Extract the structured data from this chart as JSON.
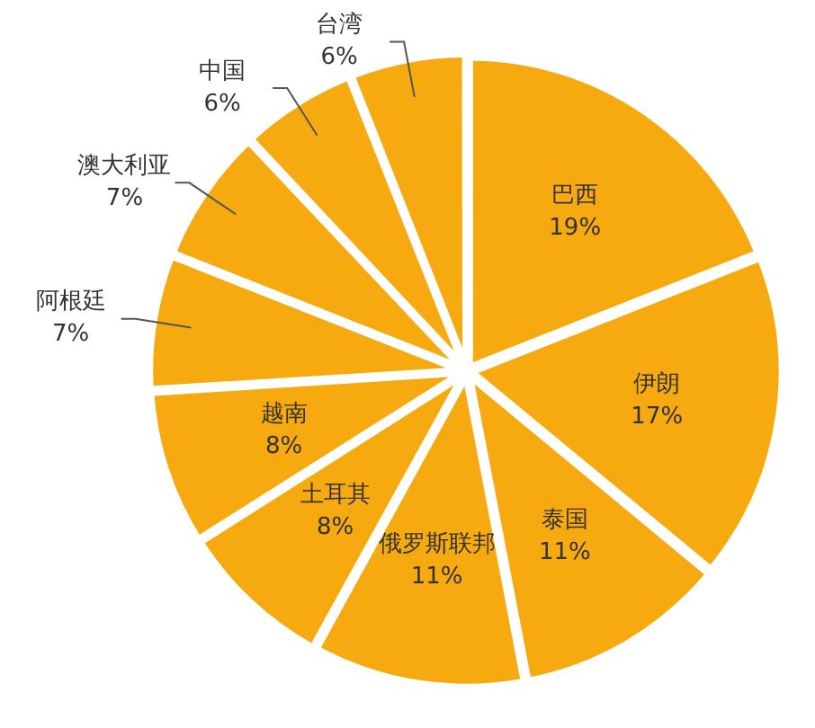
{
  "chart_data": {
    "type": "pie",
    "categories": [
      "巴西",
      "伊朗",
      "泰国",
      "俄罗斯联邦",
      "土耳其",
      "越南",
      "阿根廷",
      "澳大利亚",
      "中国",
      "台湾"
    ],
    "values": [
      19,
      17,
      11,
      11,
      8,
      8,
      7,
      7,
      6,
      6
    ],
    "value_labels": [
      "19%",
      "17%",
      "11%",
      "11%",
      "8%",
      "8%",
      "7%",
      "7%",
      "6%",
      "6%"
    ],
    "colors": [
      "#f7aa10",
      "#f7aa10",
      "#f7aa10",
      "#f7aa10",
      "#f7aa10",
      "#f7aa10",
      "#f7aa10",
      "#f7aa10",
      "#f7aa10",
      "#f7aa10"
    ],
    "legend": false
  }
}
